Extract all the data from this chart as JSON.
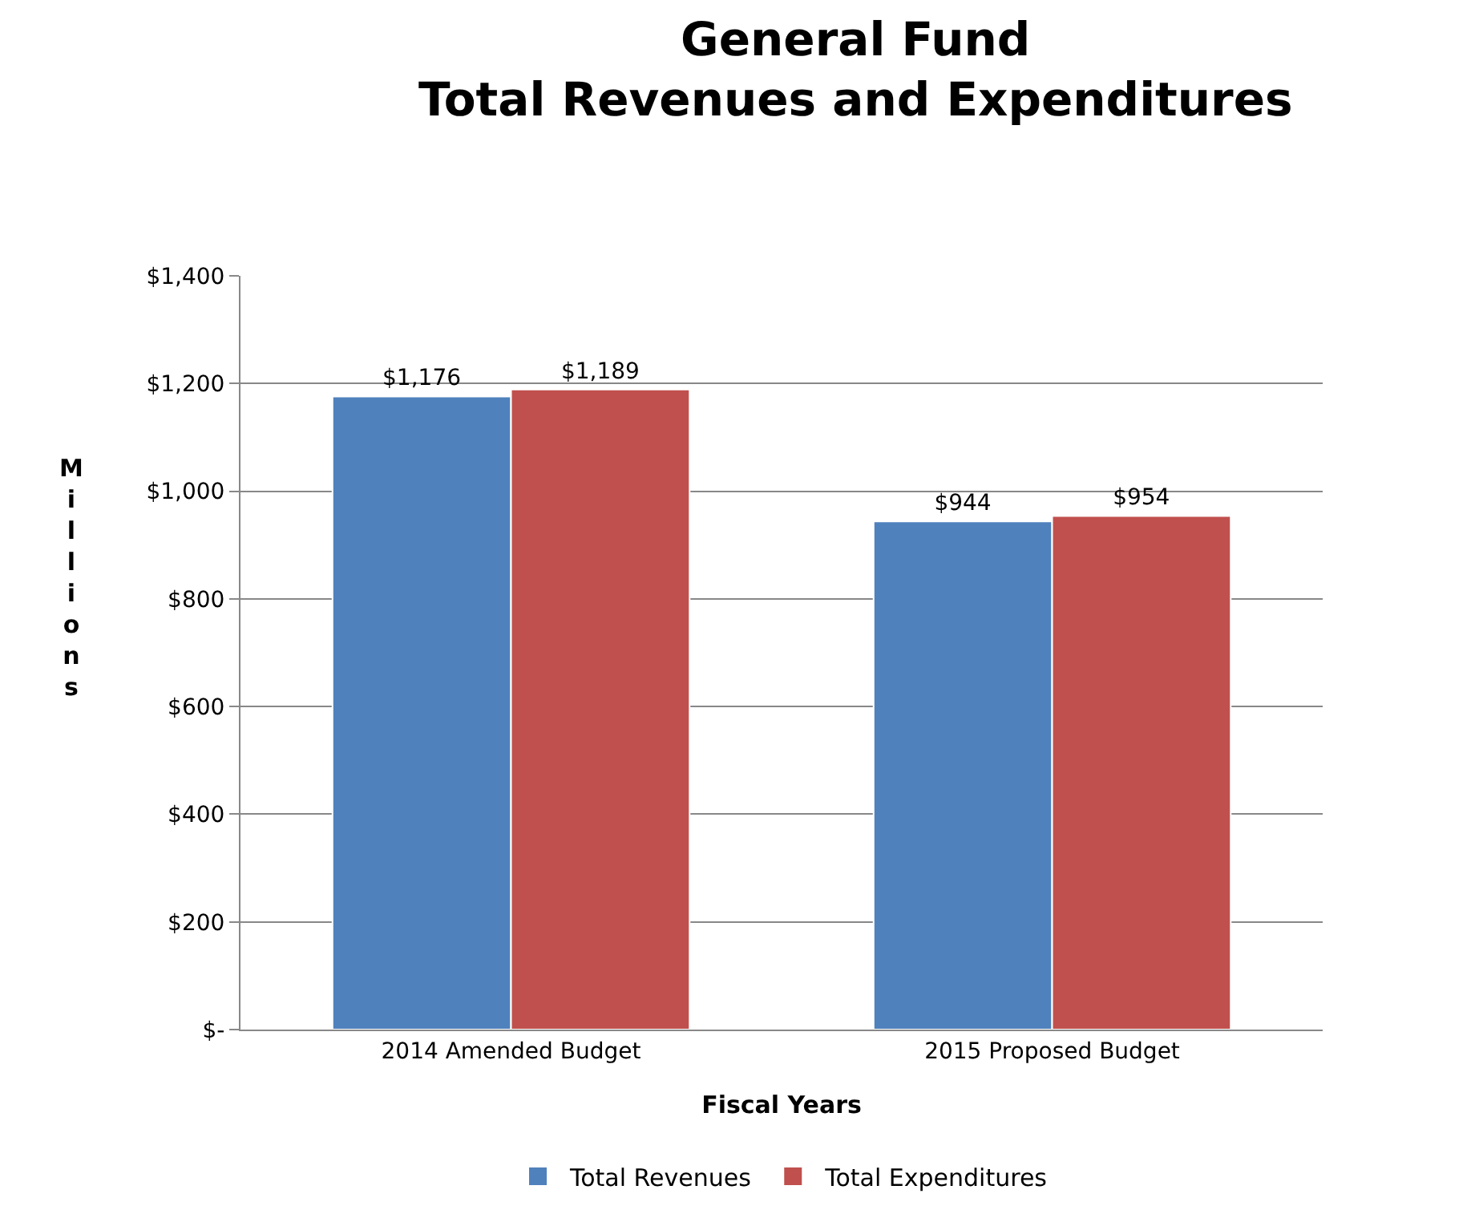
{
  "chart_data": {
    "type": "bar",
    "title": "General Fund\nTotal Revenues and Expenditures",
    "xlabel": "Fiscal Years",
    "ylabel": "Millions",
    "categories": [
      "2014 Amended Budget",
      "2015 Proposed Budget"
    ],
    "series": [
      {
        "name": "Total Revenues",
        "color": "#4f81bd",
        "values": [
          1176,
          944
        ],
        "value_labels": [
          "$1,176",
          "$944"
        ]
      },
      {
        "name": "Total Expenditures",
        "color": "#c0504d",
        "values": [
          1189,
          954
        ],
        "value_labels": [
          "$1,189",
          "$954"
        ]
      }
    ],
    "ylim": [
      0,
      1400
    ],
    "yticks": [
      {
        "value": 0,
        "label": "$-"
      },
      {
        "value": 200,
        "label": "$200"
      },
      {
        "value": 400,
        "label": "$400"
      },
      {
        "value": 600,
        "label": "$600"
      },
      {
        "value": 800,
        "label": "$800"
      },
      {
        "value": 1000,
        "label": "$1,000"
      },
      {
        "value": 1200,
        "label": "$1,200"
      },
      {
        "value": 1400,
        "label": "$1,400"
      }
    ],
    "grid": "y",
    "legend": "bottom"
  }
}
